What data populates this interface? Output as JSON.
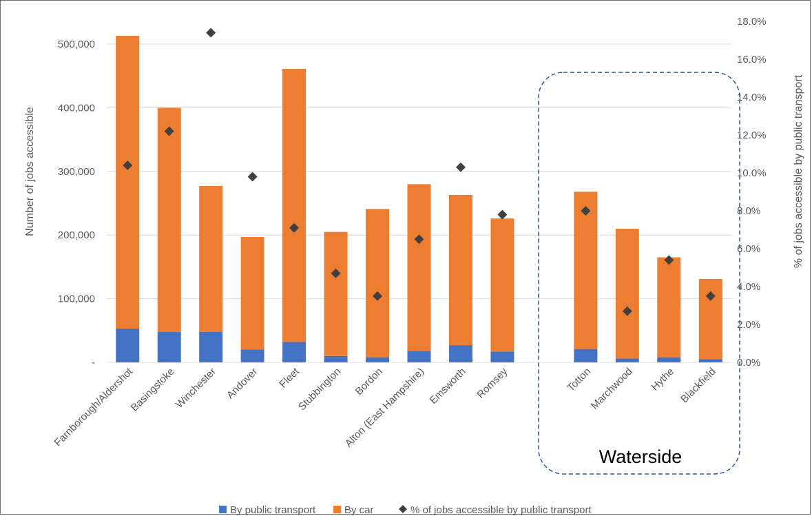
{
  "chart_data": {
    "type": "bar",
    "stacked": true,
    "categories": [
      "Farnborough/Aldershot",
      "Basingstoke",
      "Winchester",
      "Andover",
      "Fleet",
      "Stubbington",
      "Bordon",
      "Alton (East Hampshire)",
      "Emsworth",
      "Romsey",
      "",
      "Totton",
      "Marchwood",
      "Hythe",
      "Blackfield"
    ],
    "series": [
      {
        "name": "By public transport",
        "axis": "left",
        "color": "#4472C4",
        "values": [
          53000,
          48000,
          48000,
          20000,
          32000,
          10000,
          8000,
          18000,
          27000,
          17000,
          null,
          21000,
          6000,
          8000,
          5000
        ]
      },
      {
        "name": "By car",
        "axis": "left",
        "color": "#ED7D31",
        "values": [
          460000,
          352000,
          229000,
          177000,
          429000,
          195000,
          233000,
          262000,
          236000,
          209000,
          null,
          247000,
          204000,
          157000,
          126000
        ]
      },
      {
        "name": "% of jobs accessible by public transport",
        "axis": "right",
        "type": "scatter",
        "marker": "diamond",
        "color": "#404040",
        "values": [
          10.4,
          12.2,
          17.4,
          9.8,
          7.1,
          4.7,
          3.5,
          6.5,
          10.3,
          7.8,
          null,
          8.0,
          2.7,
          5.4,
          3.5
        ]
      }
    ],
    "y_left": {
      "label": "Number of jobs accessible",
      "min": 0,
      "max": 550000,
      "ticks": [
        0,
        100000,
        200000,
        300000,
        400000,
        500000
      ],
      "tick_labels": [
        "-",
        "100,000",
        "200,000",
        "300,000",
        "400,000",
        "500,000"
      ]
    },
    "y_right": {
      "label": "% of jobs accessible by public transport",
      "min": 0,
      "max": 18,
      "ticks": [
        0,
        2,
        4,
        6,
        8,
        10,
        12,
        14,
        16,
        18
      ],
      "tick_labels": [
        "0.0%",
        "2.0%",
        "4.0%",
        "6.0%",
        "8.0%",
        "10.0%",
        "12.0%",
        "14.0%",
        "16.0%",
        "18.0%"
      ]
    },
    "grid": true,
    "legend": {
      "position": "bottom",
      "entries": [
        "By public transport",
        "By car",
        "% of jobs accessible by public transport"
      ]
    },
    "annotations": [
      {
        "text": "Waterside",
        "style": "dashed-rounded-box",
        "color": "#2F5597",
        "encloses": [
          "Totton",
          "Marchwood",
          "Hythe",
          "Blackfield"
        ]
      }
    ]
  }
}
